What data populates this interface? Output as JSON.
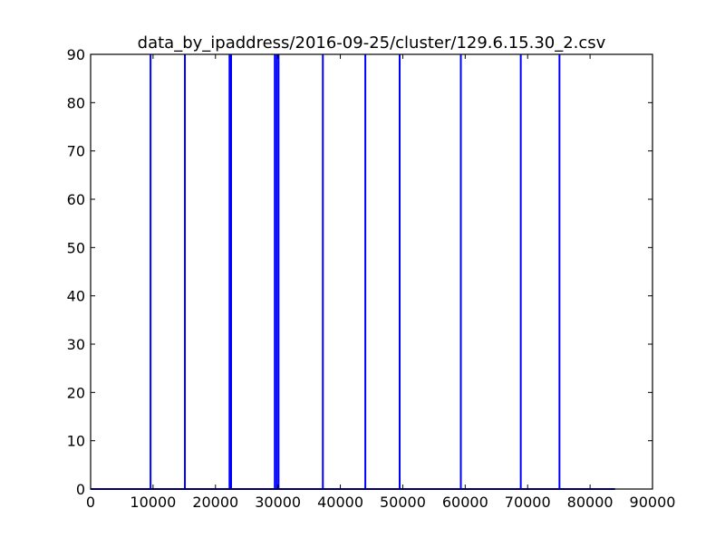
{
  "chart_data": {
    "type": "line",
    "title": "data_by_ipaddress/2016-09-25/cluster/129.6.15.30_2.csv",
    "xlabel": "",
    "ylabel": "",
    "xlim": [
      0,
      90000
    ],
    "ylim": [
      0,
      90
    ],
    "xticks": [
      "0",
      "10000",
      "20000",
      "30000",
      "40000",
      "50000",
      "60000",
      "70000",
      "80000",
      "90000"
    ],
    "yticks": [
      "0",
      "10",
      "20",
      "30",
      "40",
      "50",
      "60",
      "70",
      "80",
      "90"
    ],
    "grid": false,
    "legend": "none",
    "series": [
      {
        "color": "#0000ff",
        "baseline": {
          "x_start": 0,
          "x_end": 84000,
          "y": 0
        },
        "spikes": [
          {
            "x": 9600,
            "y": 90
          },
          {
            "x": 15100,
            "y": 90
          },
          {
            "x": 22250,
            "y": 90
          },
          {
            "x": 22500,
            "y": 90
          },
          {
            "x": 29500,
            "y": 90
          },
          {
            "x": 29800,
            "y": 90
          },
          {
            "x": 30100,
            "y": 90
          },
          {
            "x": 37200,
            "y": 90
          },
          {
            "x": 44000,
            "y": 90
          },
          {
            "x": 49500,
            "y": 90
          },
          {
            "x": 59300,
            "y": 90
          },
          {
            "x": 68900,
            "y": 90
          },
          {
            "x": 75100,
            "y": 90
          }
        ]
      }
    ]
  }
}
